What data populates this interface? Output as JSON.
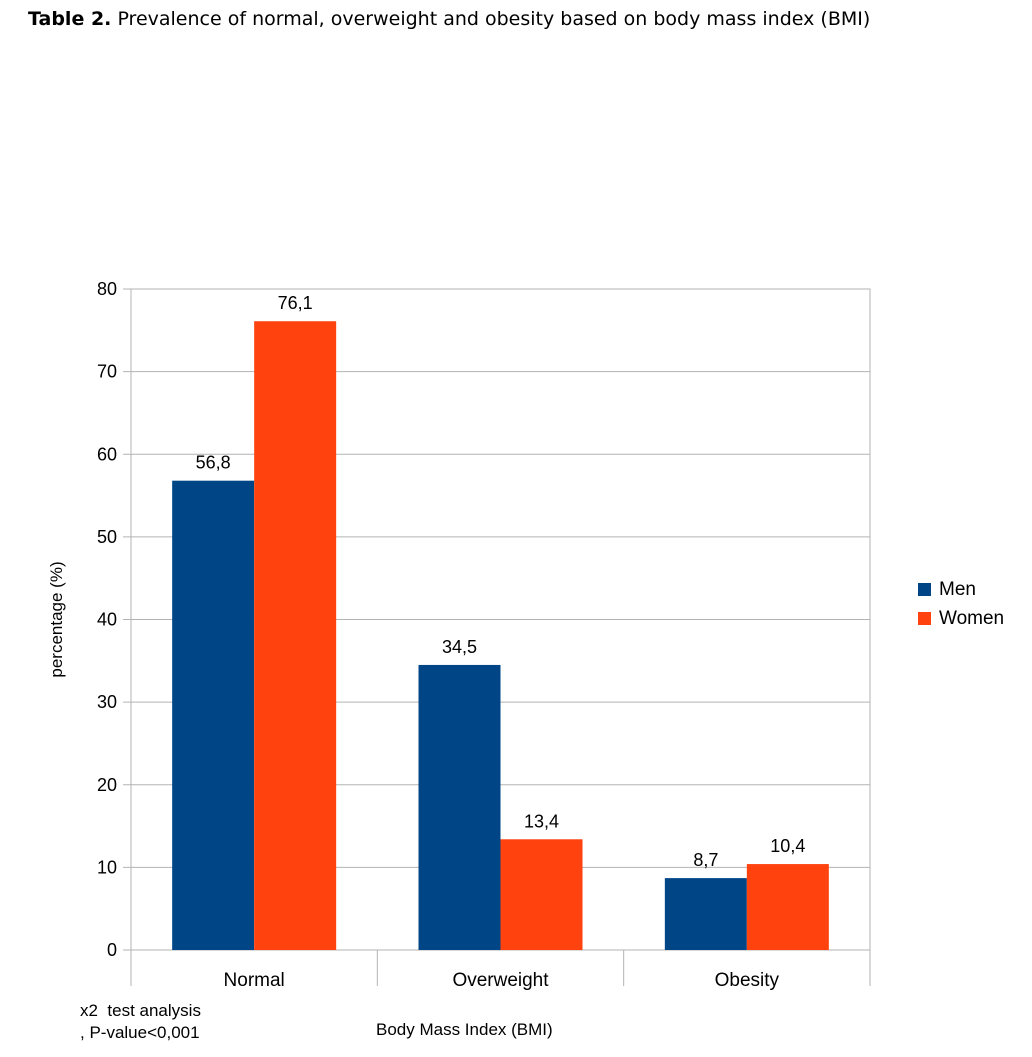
{
  "caption": {
    "label": "Table 2.",
    "text": "Prevalence of normal, overweight and obesity based on  body mass index (BMI)"
  },
  "note": {
    "line1": "x2  test analysis",
    "line2": ", P-value<0,001"
  },
  "colors": {
    "men": "#004586",
    "women": "#ff420e",
    "grid": "#b3b3b3"
  },
  "chart_data": {
    "type": "bar",
    "title": "",
    "xlabel": "Body Mass Index  (BMI)",
    "ylabel": "percentage (%)",
    "ylim": [
      0,
      80
    ],
    "yticks": [
      "0",
      "10",
      "20",
      "30",
      "40",
      "50",
      "60",
      "70",
      "80"
    ],
    "grid": true,
    "legend_position": "right",
    "categories": [
      "Normal",
      "Overweight",
      "Obesity"
    ],
    "series": [
      {
        "name": "Men",
        "values": [
          56.8,
          34.5,
          8.7
        ],
        "labels": [
          "56,8",
          "34,5",
          "8,7"
        ]
      },
      {
        "name": "Women",
        "values": [
          76.1,
          13.4,
          10.4
        ],
        "labels": [
          "76,1",
          "13,4",
          "10,4"
        ]
      }
    ]
  }
}
